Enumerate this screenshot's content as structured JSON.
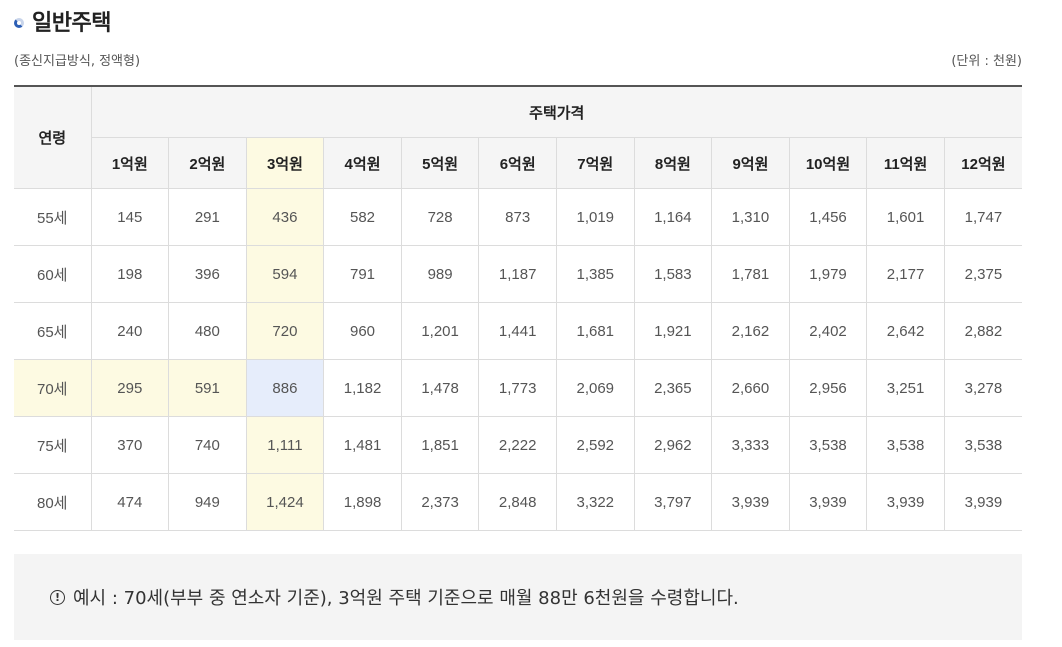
{
  "title": "일반주택",
  "subtitle_left": "(종신지급방식, 정액형)",
  "subtitle_right": "(단위 : 천원)",
  "table": {
    "age_header": "연령",
    "price_header": "주택가격",
    "price_columns": [
      "1억원",
      "2억원",
      "3억원",
      "4억원",
      "5억원",
      "6억원",
      "7억원",
      "8억원",
      "9억원",
      "10억원",
      "11억원",
      "12억원"
    ],
    "rows": [
      {
        "age": "55세",
        "values": [
          "145",
          "291",
          "436",
          "582",
          "728",
          "873",
          "1,019",
          "1,164",
          "1,310",
          "1,456",
          "1,601",
          "1,747"
        ]
      },
      {
        "age": "60세",
        "values": [
          "198",
          "396",
          "594",
          "791",
          "989",
          "1,187",
          "1,385",
          "1,583",
          "1,781",
          "1,979",
          "2,177",
          "2,375"
        ]
      },
      {
        "age": "65세",
        "values": [
          "240",
          "480",
          "720",
          "960",
          "1,201",
          "1,441",
          "1,681",
          "1,921",
          "2,162",
          "2,402",
          "2,642",
          "2,882"
        ]
      },
      {
        "age": "70세",
        "values": [
          "295",
          "591",
          "886",
          "1,182",
          "1,478",
          "1,773",
          "2,069",
          "2,365",
          "2,660",
          "2,956",
          "3,251",
          "3,278"
        ]
      },
      {
        "age": "75세",
        "values": [
          "370",
          "740",
          "1,111",
          "1,481",
          "1,851",
          "2,222",
          "2,592",
          "2,962",
          "3,333",
          "3,538",
          "3,538",
          "3,538"
        ]
      },
      {
        "age": "80세",
        "values": [
          "474",
          "949",
          "1,424",
          "1,898",
          "2,373",
          "2,848",
          "3,322",
          "3,797",
          "3,939",
          "3,939",
          "3,939",
          "3,939"
        ]
      }
    ],
    "highlight_column": 2,
    "highlight_row": 3,
    "highlight_color": "#fdfae2",
    "highlight_cell_color": "#e6edfb"
  },
  "note": {
    "icon": "exclamation-circle-icon",
    "text": "예시 : 70세(부부 중 연소자 기준), 3억원 주택 기준으로 매월 88만 6천원을 수령합니다."
  }
}
